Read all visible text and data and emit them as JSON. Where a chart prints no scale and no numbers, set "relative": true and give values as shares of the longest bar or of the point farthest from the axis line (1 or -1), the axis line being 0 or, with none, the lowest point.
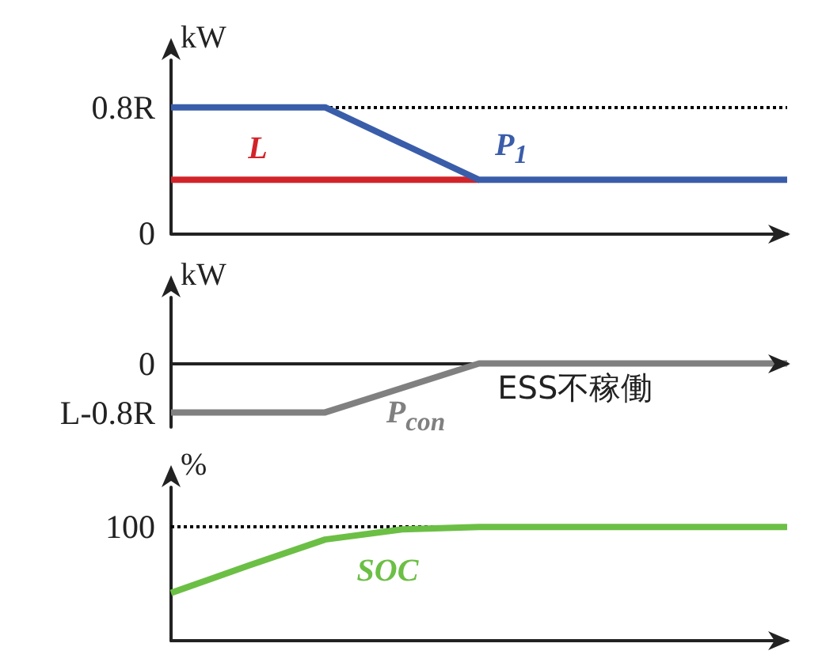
{
  "chart_data": [
    {
      "type": "line",
      "ylabel": "kW",
      "categories": [
        null,
        null,
        null,
        null,
        null,
        null,
        null,
        null,
        null
      ],
      "ylim": [
        0,
        1.1
      ],
      "yticks": [
        0,
        {
          "value": 0.8,
          "label": "0.8R"
        }
      ],
      "grid": false,
      "marker": "none",
      "line_style": "solid",
      "series": [
        {
          "name": "P$_{1}$",
          "color": "#3a5daa",
          "values": [
            0.8,
            0.8,
            0.8,
            0.57,
            0.34,
            0.34,
            0.34,
            0.34,
            0.34
          ]
        },
        {
          "name": "L",
          "color": "#d2232a",
          "values": [
            0.34,
            0.34,
            0.34,
            0.34,
            0.34,
            null,
            null,
            null,
            null
          ]
        }
      ],
      "ref_lines": [
        {
          "axis": "y",
          "value": 0.8,
          "line_style": "dotted",
          "color": "#000000"
        }
      ]
    },
    {
      "type": "line",
      "ylabel": "kW",
      "relative": true,
      "categories": [
        null,
        null,
        null,
        null,
        null,
        null,
        null,
        null,
        null
      ],
      "grid": false,
      "marker": "none",
      "line_style": "solid",
      "series": [
        {
          "name": "P$_{con}$",
          "color": "#808080",
          "values": [
            -1,
            -1,
            -1,
            -0.5,
            0,
            0,
            0,
            0,
            0
          ]
        }
      ],
      "annotations": [
        "0",
        "L-0.8R",
        "ESS不稼働"
      ]
    },
    {
      "type": "line",
      "ylabel": "%",
      "relative": true,
      "categories": [
        null,
        null,
        null,
        null,
        null,
        null,
        null,
        null,
        null
      ],
      "grid": false,
      "marker": "none",
      "line_style": "solid",
      "series": [
        {
          "name": "SOC",
          "color": "#6cbf45",
          "values": [
            0.42,
            0.66,
            0.89,
            0.98,
            1,
            1,
            1,
            1,
            1
          ]
        }
      ],
      "annotations": [
        "100"
      ],
      "ref_lines": [
        {
          "axis": "y",
          "value": 1,
          "line_style": "dotted",
          "color": "#000000"
        }
      ]
    }
  ]
}
